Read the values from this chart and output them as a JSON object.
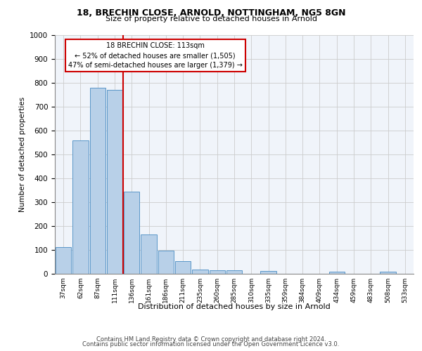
{
  "title_line1": "18, BRECHIN CLOSE, ARNOLD, NOTTINGHAM, NG5 8GN",
  "title_line2": "Size of property relative to detached houses in Arnold",
  "xlabel": "Distribution of detached houses by size in Arnold",
  "ylabel": "Number of detached properties",
  "categories": [
    "37sqm",
    "62sqm",
    "87sqm",
    "111sqm",
    "136sqm",
    "161sqm",
    "186sqm",
    "211sqm",
    "235sqm",
    "260sqm",
    "285sqm",
    "310sqm",
    "335sqm",
    "359sqm",
    "384sqm",
    "409sqm",
    "434sqm",
    "459sqm",
    "483sqm",
    "508sqm",
    "533sqm"
  ],
  "values": [
    112,
    558,
    778,
    770,
    345,
    165,
    97,
    52,
    18,
    14,
    14,
    0,
    11,
    0,
    0,
    0,
    8,
    0,
    0,
    8,
    0
  ],
  "bar_color": "#b8d0e8",
  "bar_edge_color": "#5a96c8",
  "grid_color": "#cccccc",
  "annotation_text_line1": "18 BRECHIN CLOSE: 113sqm",
  "annotation_text_line2": "← 52% of detached houses are smaller (1,505)",
  "annotation_text_line3": "47% of semi-detached houses are larger (1,379) →",
  "annotation_box_facecolor": "#ffffff",
  "annotation_box_edgecolor": "#cc0000",
  "vline_x": 3.5,
  "vline_color": "#cc0000",
  "ylim": [
    0,
    1000
  ],
  "yticks": [
    0,
    100,
    200,
    300,
    400,
    500,
    600,
    700,
    800,
    900,
    1000
  ],
  "footer_line1": "Contains HM Land Registry data © Crown copyright and database right 2024.",
  "footer_line2": "Contains public sector information licensed under the Open Government Licence v3.0.",
  "bg_color": "#ffffff",
  "plot_bg_color": "#f0f4fa"
}
